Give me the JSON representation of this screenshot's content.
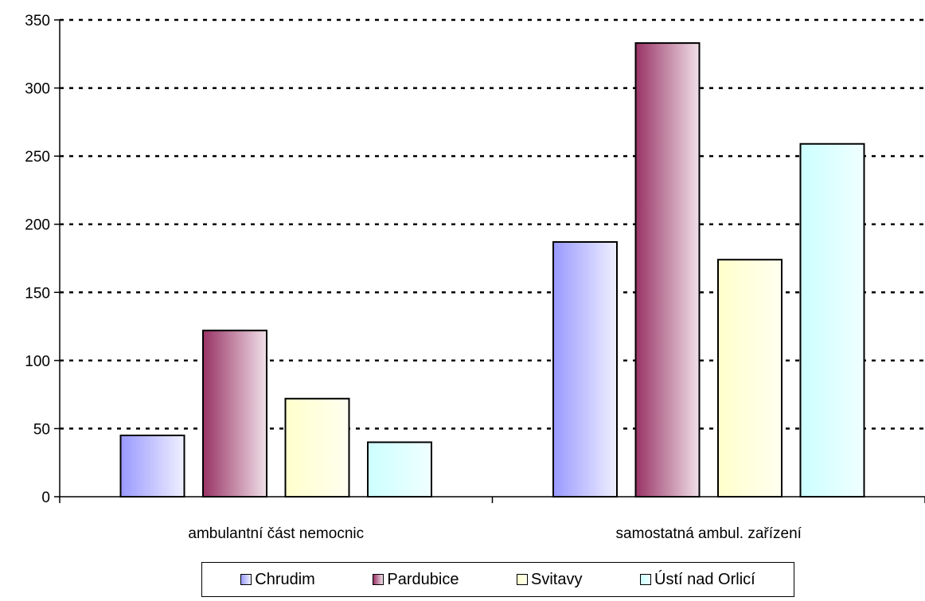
{
  "chart_data": {
    "type": "bar",
    "categories": [
      "ambulantní část nemocnic",
      "samostatná ambul. zařízení"
    ],
    "series": [
      {
        "name": "Chrudim",
        "values": [
          45,
          187
        ],
        "color": "#9999ff",
        "color_light": "#f0f0ff"
      },
      {
        "name": "Pardubice",
        "values": [
          122,
          333
        ],
        "color": "#993366",
        "color_light": "#f0e0e8"
      },
      {
        "name": "Svitavy",
        "values": [
          72,
          174
        ],
        "color": "#ffffcc",
        "color_light": "#fffff0"
      },
      {
        "name": "Ústí nad Orlicí",
        "values": [
          40,
          259
        ],
        "color": "#ccffff",
        "color_light": "#f0ffff"
      }
    ],
    "ylim": [
      0,
      350
    ],
    "yticks": [
      0,
      50,
      100,
      150,
      200,
      250,
      300,
      350
    ],
    "grid": "dotted horizontal",
    "legend_position": "bottom"
  }
}
